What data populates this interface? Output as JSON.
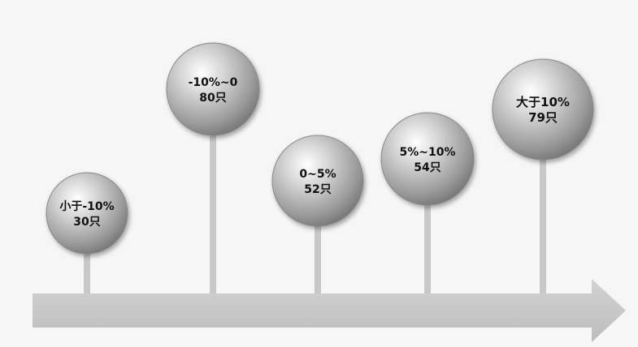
{
  "chart_data": {
    "type": "timeline-bubbles",
    "items": [
      {
        "range": "小于-10%",
        "count": "30只"
      },
      {
        "range": "-10%~0",
        "count": "80只"
      },
      {
        "range": "0~5%",
        "count": "52只"
      },
      {
        "range": "5%~10%",
        "count": "54只"
      },
      {
        "range": "大于10%",
        "count": "79只"
      }
    ]
  }
}
